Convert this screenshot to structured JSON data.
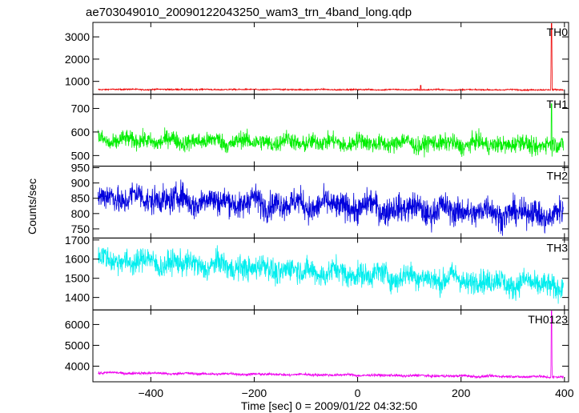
{
  "chart_data": {
    "type": "line",
    "title": "ae703049010_20090122043250_wam3_trn_4band_long.qdp",
    "xlabel": "Time [sec] 0 = 2009/01/22 04:32:50",
    "ylabel": "Counts/sec",
    "xlim": [
      -512,
      408
    ],
    "x_ticks": [
      -400,
      -200,
      0,
      200,
      400
    ],
    "grid": false,
    "legend": "none",
    "series": [
      {
        "name": "TH0",
        "color": "#ee0000",
        "ylim": [
          420,
          3650
        ],
        "y_ticks": [
          1000,
          2000,
          3000
        ],
        "baseline_level": 620,
        "noise_amplitude": 20,
        "trend": [
          [
            -500,
            640
          ],
          [
            400,
            620
          ]
        ],
        "features": [
          {
            "time": 375,
            "peak": 3600
          },
          {
            "time": 122,
            "peak": 820
          }
        ]
      },
      {
        "name": "TH1",
        "color": "#00ee00",
        "ylim": [
          455,
          760
        ],
        "y_ticks": [
          500,
          600,
          700
        ],
        "baseline_level": 555,
        "noise_amplitude": 26,
        "trend": [
          [
            -500,
            565
          ],
          [
            400,
            545
          ]
        ],
        "features": [
          {
            "time": 375,
            "peak": 720
          }
        ]
      },
      {
        "name": "TH2",
        "color": "#0000dd",
        "ylim": [
          720,
          955
        ],
        "y_ticks": [
          750,
          800,
          850,
          900,
          950
        ],
        "baseline_level": 830,
        "noise_amplitude": 32,
        "trend": [
          [
            -500,
            855
          ],
          [
            400,
            795
          ]
        ],
        "features": []
      },
      {
        "name": "TH3",
        "color": "#00eeee",
        "ylim": [
          1335,
          1710
        ],
        "y_ticks": [
          1400,
          1500,
          1600,
          1700
        ],
        "baseline_level": 1540,
        "noise_amplitude": 45,
        "trend": [
          [
            -500,
            1600
          ],
          [
            400,
            1460
          ]
        ],
        "features": []
      },
      {
        "name": "TH0123",
        "color": "#ee00ee",
        "ylim": [
          3250,
          6700
        ],
        "y_ticks": [
          4000,
          5000,
          6000
        ],
        "baseline_level": 3620,
        "noise_amplitude": 45,
        "trend": [
          [
            -500,
            3680
          ],
          [
            400,
            3480
          ]
        ],
        "features": [
          {
            "time": 375,
            "peak": 6650
          }
        ]
      }
    ]
  }
}
